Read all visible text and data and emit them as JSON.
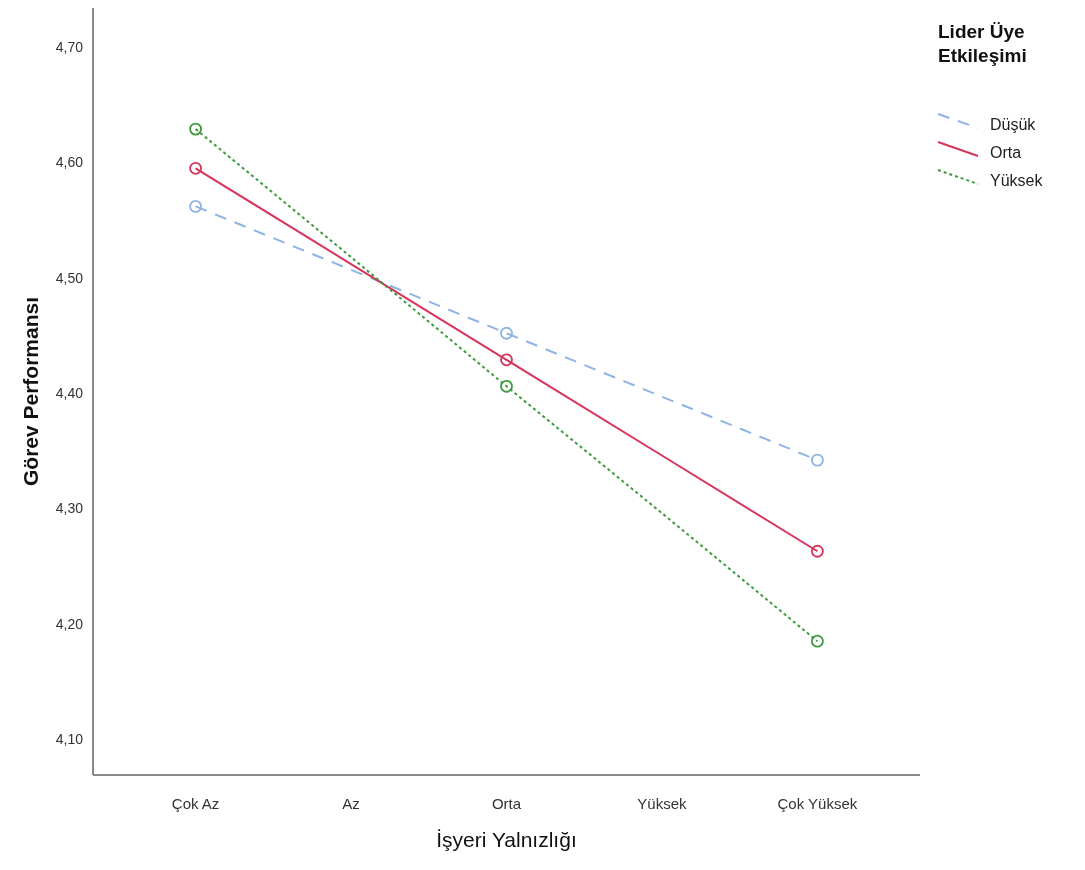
{
  "chart_data": {
    "type": "line",
    "xlabel": "İşyeri Yalnızlığı",
    "ylabel": "Görev Performansı",
    "legend_title": "Lider Üye Etkileşimi",
    "categories": [
      "Çok Az",
      "Az",
      "Orta",
      "Yüksek",
      "Çok Yüksek"
    ],
    "ylim": [
      4.07,
      4.735
    ],
    "yticks": [
      {
        "value": 4.1,
        "label": "4,10"
      },
      {
        "value": 4.2,
        "label": "4,20"
      },
      {
        "value": 4.3,
        "label": "4,30"
      },
      {
        "value": 4.4,
        "label": "4,40"
      },
      {
        "value": 4.5,
        "label": "4,50"
      },
      {
        "value": 4.6,
        "label": "4,60"
      },
      {
        "value": 4.7,
        "label": "4,70"
      }
    ],
    "grid": false,
    "legend": "top right",
    "series": [
      {
        "name": "Düşük",
        "type": "line",
        "color": "#8fb4e3",
        "line_style": "dashed",
        "marker": "none",
        "values": [
          4.563,
          4.508,
          4.453,
          4.398,
          4.343
        ]
      },
      {
        "name": "Orta",
        "type": "line",
        "color": "#d6345a",
        "line_style": "solid",
        "marker": "none",
        "values": [
          4.596,
          4.513,
          4.43,
          4.347,
          4.264
        ]
      },
      {
        "name": "Yüksek",
        "type": "line",
        "color": "#3d9a3d",
        "line_style": "dotted",
        "marker": "none",
        "values": [
          4.63,
          4.519,
          4.407,
          4.297,
          4.186
        ]
      },
      {
        "type": "scatter",
        "color": "#8fb4e3",
        "marker": "circle",
        "x": [
          "Çok Az",
          "Orta",
          "Çok Yüksek"
        ],
        "values": [
          4.563,
          4.453,
          4.343
        ]
      },
      {
        "type": "scatter",
        "color": "#d6345a",
        "marker": "circle",
        "x": [
          "Çok Az",
          "Orta",
          "Çok Yüksek"
        ],
        "values": [
          4.596,
          4.43,
          4.264
        ]
      },
      {
        "type": "scatter",
        "color": "#3d9a3d",
        "marker": "circle",
        "x": [
          "Çok Az",
          "Orta",
          "Çok Yüksek"
        ],
        "values": [
          4.63,
          4.407,
          4.186
        ]
      }
    ]
  }
}
